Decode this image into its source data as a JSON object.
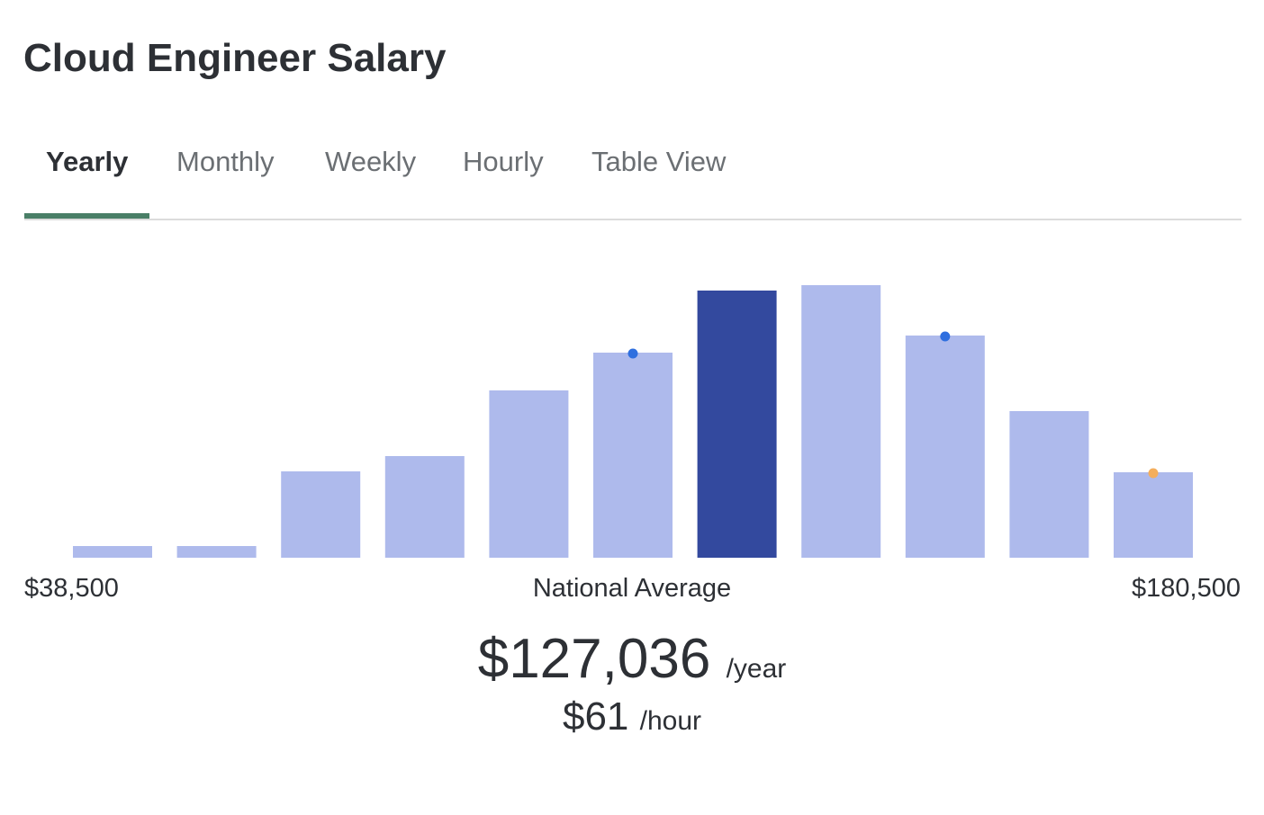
{
  "header": {
    "title": "Cloud Engineer Salary"
  },
  "tabs": {
    "items": [
      "Yearly",
      "Monthly",
      "Weekly",
      "Hourly",
      "Table View"
    ],
    "active": 0
  },
  "chart_data": {
    "type": "bar",
    "values": [
      13,
      13,
      96,
      113,
      186,
      228,
      297,
      303,
      247,
      163,
      95
    ],
    "color": "#aebaec",
    "highlight_color": "#33499e",
    "highlight_index": 6,
    "markers": [
      {
        "index": 5,
        "color": "#2f6fdf"
      },
      {
        "index": 8,
        "color": "#2f6fdf"
      },
      {
        "index": 10,
        "color": "#f4ae5c"
      }
    ],
    "min_label": "$38,500",
    "center_label": "National Average",
    "max_label": "$180,500"
  },
  "summary": {
    "yearly": "$127,036",
    "yearly_unit": "/year",
    "hourly": "$61",
    "hourly_unit": "/hour"
  }
}
